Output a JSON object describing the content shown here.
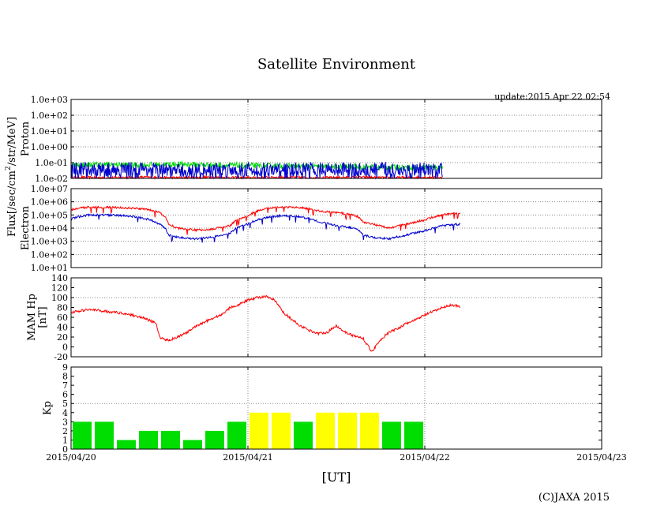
{
  "page": {
    "title": "Satellite Environment",
    "update": "update:2015 Apr 22 02:54",
    "copyright": "(C)JAXA 2015",
    "xaxis_label": "[UT]",
    "flux_label": "Flux[/sec/cm",
    "flux_sup": "2",
    "flux_label_tail": "/str/MeV]"
  },
  "colors": {
    "red": "#ff0000",
    "blue": "#0000cc",
    "green": "#00dd00",
    "yellow": "#ffff00",
    "grid": "#888888"
  },
  "chart_data": [
    {
      "type": "line",
      "name": "proton",
      "ylabel": "Proton",
      "scale": "log",
      "ylim_exp": [
        -2,
        3
      ],
      "tick_labels": [
        "1.0e-02",
        "1.0e-01",
        "1.0e+00",
        "1.0e+01",
        "1.0e+02",
        "1.0e+03"
      ],
      "series": [
        {
          "name": "red",
          "color": "#ff0000",
          "x": [
            0,
            0.2,
            0.4,
            0.6,
            0.8,
            1.0,
            1.2,
            1.4,
            1.6,
            1.8,
            2.0,
            2.1
          ],
          "values": [
            0.012,
            0.011,
            0.012,
            0.011,
            0.012,
            0.011,
            0.012,
            0.011,
            0.012,
            0.011,
            0.012,
            0.011
          ]
        },
        {
          "name": "green",
          "color": "#00dd00",
          "x": [
            0,
            0.2,
            0.4,
            0.6,
            0.8,
            1.0,
            1.2,
            1.4,
            1.6,
            1.8,
            2.0,
            2.1
          ],
          "values": [
            0.07,
            0.075,
            0.07,
            0.08,
            0.07,
            0.065,
            0.06,
            0.055,
            0.055,
            0.05,
            0.05,
            0.05
          ]
        },
        {
          "name": "blue",
          "color": "#0000cc",
          "x": [
            0,
            0.2,
            0.4,
            0.6,
            0.8,
            1.0,
            1.2,
            1.4,
            1.6,
            1.8,
            2.0,
            2.1
          ],
          "values": [
            0.04,
            0.035,
            0.04,
            0.03,
            0.035,
            0.04,
            0.035,
            0.04,
            0.035,
            0.04,
            0.035,
            0.04
          ]
        }
      ]
    },
    {
      "type": "line",
      "name": "electron",
      "ylabel": "Electron",
      "scale": "log",
      "ylim_exp": [
        1,
        7
      ],
      "tick_labels": [
        "1.0e+01",
        "1.0e+02",
        "1.0e+03",
        "1.0e+04",
        "1.0e+05",
        "1.0e+06",
        "1.0e+07"
      ],
      "series": [
        {
          "name": "red",
          "color": "#ff0000",
          "x": [
            0,
            0.1,
            0.2,
            0.3,
            0.4,
            0.5,
            0.55,
            0.6,
            0.7,
            0.8,
            0.9,
            1.0,
            1.1,
            1.2,
            1.3,
            1.4,
            1.5,
            1.6,
            1.65,
            1.7,
            1.8,
            1.9,
            2.0,
            2.1,
            2.2
          ],
          "values": [
            250000,
            400000,
            380000,
            350000,
            300000,
            150000,
            20000,
            10000,
            7000,
            8000,
            15000,
            80000,
            300000,
            400000,
            350000,
            200000,
            150000,
            100000,
            30000,
            20000,
            10000,
            20000,
            40000,
            100000,
            150000
          ]
        },
        {
          "name": "blue",
          "color": "#0000cc",
          "x": [
            0,
            0.1,
            0.2,
            0.3,
            0.4,
            0.5,
            0.55,
            0.6,
            0.7,
            0.8,
            0.9,
            1.0,
            1.1,
            1.2,
            1.3,
            1.4,
            1.5,
            1.6,
            1.65,
            1.7,
            1.8,
            1.9,
            2.0,
            2.1,
            2.2
          ],
          "values": [
            50000,
            100000,
            100000,
            90000,
            60000,
            20000,
            3000,
            2000,
            1500,
            2000,
            4000,
            20000,
            60000,
            90000,
            70000,
            30000,
            15000,
            10000,
            3000,
            2000,
            1500,
            3000,
            6000,
            15000,
            20000
          ]
        }
      ]
    },
    {
      "type": "line",
      "name": "mam_hp",
      "ylabel": "MAM Hp",
      "ylabel2": "[nT]",
      "ylim": [
        -20,
        140
      ],
      "ticks": [
        -20,
        0,
        20,
        40,
        60,
        80,
        100,
        120,
        140
      ],
      "series": [
        {
          "name": "Hp",
          "color": "#ff0000",
          "x": [
            0,
            0.1,
            0.2,
            0.3,
            0.4,
            0.48,
            0.5,
            0.55,
            0.6,
            0.65,
            0.7,
            0.75,
            0.8,
            0.85,
            0.9,
            0.95,
            1.0,
            1.05,
            1.1,
            1.15,
            1.2,
            1.25,
            1.3,
            1.35,
            1.4,
            1.45,
            1.5,
            1.55,
            1.6,
            1.65,
            1.7,
            1.75,
            1.8,
            1.85,
            1.9,
            1.95,
            2.0,
            2.05,
            2.1,
            2.15,
            2.2
          ],
          "values": [
            70,
            76,
            72,
            68,
            60,
            48,
            20,
            13,
            20,
            28,
            40,
            50,
            58,
            65,
            80,
            86,
            95,
            100,
            102,
            95,
            70,
            55,
            42,
            33,
            27,
            30,
            43,
            30,
            22,
            18,
            -10,
            15,
            30,
            38,
            48,
            55,
            65,
            72,
            80,
            85,
            82
          ]
        }
      ]
    },
    {
      "type": "bar",
      "name": "kp",
      "ylabel": "Kp",
      "ylim": [
        0,
        9
      ],
      "ticks": [
        0,
        1,
        2,
        3,
        4,
        5,
        6,
        7,
        8,
        9
      ],
      "bar_width_days": 0.125,
      "values": [
        3,
        3,
        1,
        2,
        2,
        1,
        2,
        3,
        4,
        4,
        3,
        4,
        4,
        4,
        3,
        3
      ],
      "colors": [
        "green",
        "green",
        "green",
        "green",
        "green",
        "green",
        "green",
        "green",
        "yellow",
        "yellow",
        "green",
        "yellow",
        "yellow",
        "yellow",
        "green",
        "green"
      ]
    }
  ],
  "xaxis": {
    "range_days": [
      0,
      3
    ],
    "ticks": [
      0,
      1,
      2,
      3
    ],
    "tick_labels": [
      "2015/04/20",
      "2015/04/21",
      "2015/04/22",
      "2015/04/23"
    ]
  }
}
